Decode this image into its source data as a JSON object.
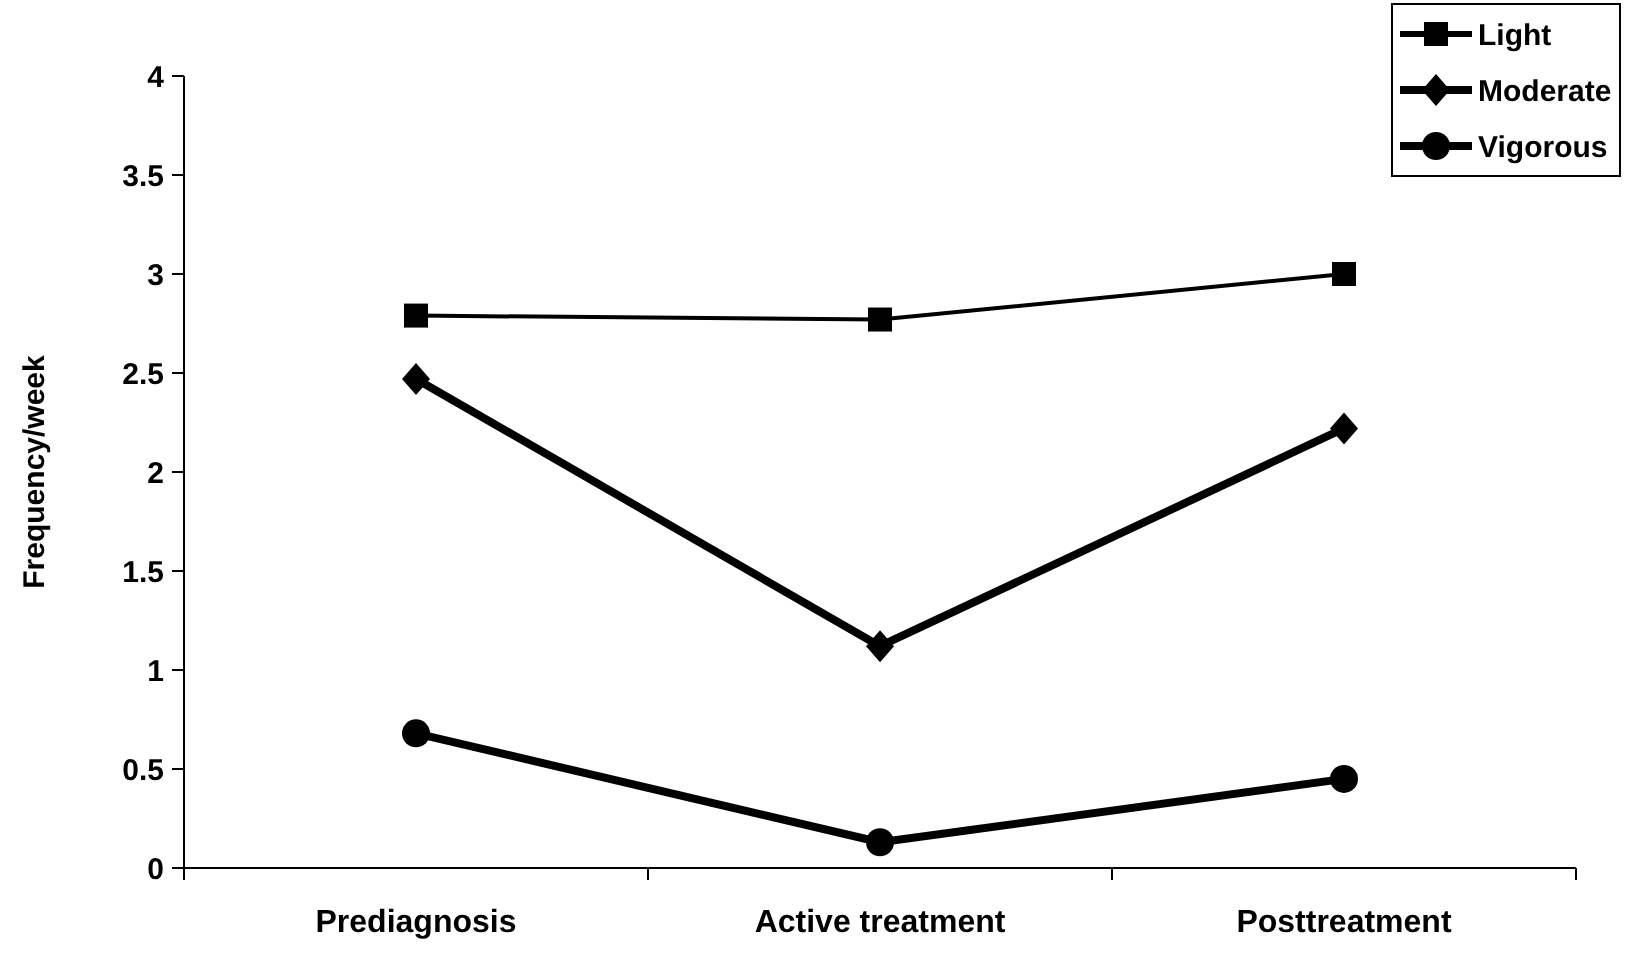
{
  "chart_data": {
    "type": "line",
    "categories": [
      "Prediagnosis",
      "Active treatment",
      "Posttreatment"
    ],
    "ylabel": "Frequency/week",
    "ylim": [
      0,
      4
    ],
    "yticks": [
      0,
      0.5,
      1,
      1.5,
      2,
      2.5,
      3,
      3.5,
      4
    ],
    "grid": false,
    "legend": "top right",
    "series": [
      {
        "name": "Light",
        "color": "#000000",
        "values": [
          2.79,
          2.77,
          3.0
        ],
        "marker": "square"
      },
      {
        "name": "Moderate",
        "color": "#000000",
        "values": [
          2.47,
          1.12,
          2.22
        ],
        "marker": "diamond"
      },
      {
        "name": "Vigorous",
        "color": "#000000",
        "values": [
          0.68,
          0.13,
          0.45
        ],
        "marker": "circle"
      }
    ]
  }
}
